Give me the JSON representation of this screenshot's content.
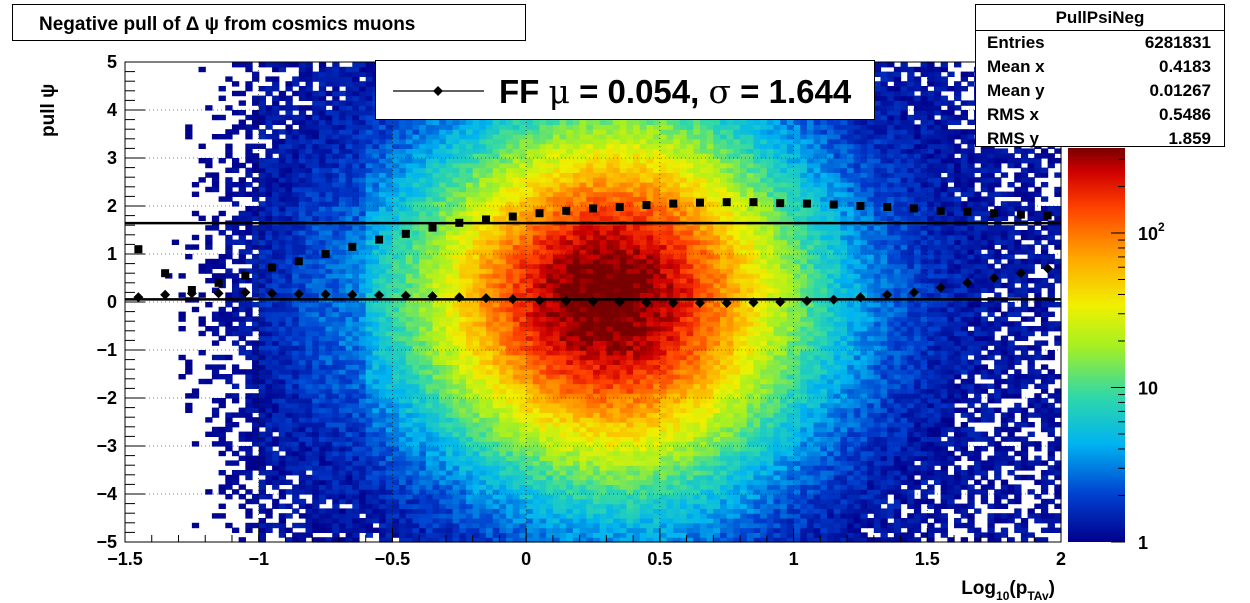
{
  "title": "Negative pull of Δ ψ from cosmics muons",
  "stats": {
    "name": "PullPsiNeg",
    "rows": [
      {
        "label": "Entries",
        "value": "6281831"
      },
      {
        "label": "Mean x",
        "value": "0.4183"
      },
      {
        "label": "Mean y",
        "value": "0.01267"
      },
      {
        "label": "RMS x",
        "value": "0.5486"
      },
      {
        "label": "RMS y",
        "value": "1.859"
      }
    ]
  },
  "legend": {
    "label": "FF",
    "mu_symbol": "μ",
    "mu_text": " =  0.054, ",
    "sigma_symbol": "σ",
    "sigma_text": " =   1.644"
  },
  "chart_data": {
    "type": "heatmap",
    "xlabel": "Log10(pTAv)",
    "ylabel": "pull ψ",
    "xlim": [
      -1.5,
      2
    ],
    "ylim": [
      -5,
      5
    ],
    "x_ticks": [
      "−1.5",
      "−1",
      "−0.5",
      "0",
      "0.5",
      "1",
      "1.5",
      "2"
    ],
    "y_ticks": [
      "−5",
      "−4",
      "−3",
      "−2",
      "−1",
      "0",
      "1",
      "2",
      "3",
      "4",
      "5"
    ],
    "colorbar": {
      "scale": "log",
      "min": 1,
      "max": 1000,
      "labels": [
        "1",
        "10",
        "10^2"
      ]
    },
    "grid": true,
    "fit_lines": [
      {
        "y": 0.054
      },
      {
        "y": 1.644
      }
    ],
    "series": [
      {
        "marker": "diamond",
        "x": [
          -1.45,
          -1.35,
          -1.25,
          -1.15,
          -1.05,
          -0.95,
          -0.85,
          -0.75,
          -0.65,
          -0.55,
          -0.45,
          -0.35,
          -0.25,
          -0.15,
          -0.05,
          0.05,
          0.15,
          0.25,
          0.35,
          0.45,
          0.55,
          0.65,
          0.75,
          0.85,
          0.95,
          1.05,
          1.15,
          1.25,
          1.35,
          1.45,
          1.55,
          1.65,
          1.75,
          1.85,
          1.95
        ],
        "y": [
          0.1,
          0.15,
          0.18,
          0.18,
          0.2,
          0.18,
          0.17,
          0.16,
          0.15,
          0.14,
          0.13,
          0.12,
          0.1,
          0.08,
          0.06,
          0.03,
          0.02,
          0.01,
          0.0,
          -0.01,
          -0.02,
          -0.02,
          -0.02,
          -0.01,
          0.0,
          0.02,
          0.05,
          0.1,
          0.15,
          0.2,
          0.3,
          0.4,
          0.5,
          0.6,
          0.7
        ]
      },
      {
        "marker": "square",
        "x": [
          -1.45,
          -1.35,
          -1.25,
          -1.15,
          -1.05,
          -0.95,
          -0.85,
          -0.75,
          -0.65,
          -0.55,
          -0.45,
          -0.35,
          -0.25,
          -0.15,
          -0.05,
          0.05,
          0.15,
          0.25,
          0.35,
          0.45,
          0.55,
          0.65,
          0.75,
          0.85,
          0.95,
          1.05,
          1.15,
          1.25,
          1.35,
          1.45,
          1.55,
          1.65,
          1.75,
          1.85,
          1.95
        ],
        "y": [
          1.1,
          0.6,
          0.25,
          0.4,
          0.55,
          0.72,
          0.85,
          1.0,
          1.15,
          1.3,
          1.42,
          1.55,
          1.65,
          1.72,
          1.78,
          1.85,
          1.9,
          1.95,
          1.98,
          2.02,
          2.05,
          2.07,
          2.08,
          2.08,
          2.06,
          2.05,
          2.03,
          2.0,
          1.98,
          1.95,
          1.9,
          1.88,
          1.85,
          1.82,
          1.8
        ]
      }
    ]
  }
}
